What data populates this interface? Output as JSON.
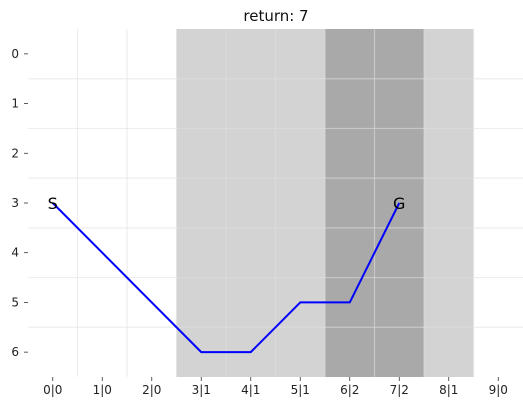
{
  "chart_data": {
    "type": "line",
    "title": "return: 7",
    "x_tick_labels": [
      "0|0",
      "1|0",
      "2|0",
      "3|1",
      "4|1",
      "5|1",
      "6|2",
      "7|2",
      "8|1",
      "9|0"
    ],
    "y_tick_labels": [
      "0",
      "1",
      "2",
      "3",
      "4",
      "5",
      "6"
    ],
    "xlim": [
      -0.5,
      9.5
    ],
    "ylim": [
      6.5,
      -0.5
    ],
    "y_inverted": true,
    "grid": true,
    "series": [
      {
        "x": [
          0,
          1,
          2,
          3,
          4,
          5,
          6,
          7
        ],
        "y": [
          3,
          4,
          5,
          6,
          6,
          5,
          5,
          3
        ],
        "color": "#0000ff"
      }
    ],
    "bands": [
      {
        "x_range": [
          2.5,
          3.5
        ],
        "level": 1,
        "color": "#d3d3d3"
      },
      {
        "x_range": [
          3.5,
          4.5
        ],
        "level": 1,
        "color": "#d3d3d3"
      },
      {
        "x_range": [
          4.5,
          5.5
        ],
        "level": 1,
        "color": "#d3d3d3"
      },
      {
        "x_range": [
          5.5,
          6.5
        ],
        "level": 2,
        "color": "#a9a9a9"
      },
      {
        "x_range": [
          6.5,
          7.5
        ],
        "level": 2,
        "color": "#a9a9a9"
      },
      {
        "x_range": [
          7.5,
          8.5
        ],
        "level": 1,
        "color": "#d3d3d3"
      }
    ],
    "annotations": [
      {
        "text": "S",
        "x": 0,
        "y": 3
      },
      {
        "text": "G",
        "x": 7,
        "y": 3
      }
    ],
    "grid_color": "#e0e0e0"
  }
}
